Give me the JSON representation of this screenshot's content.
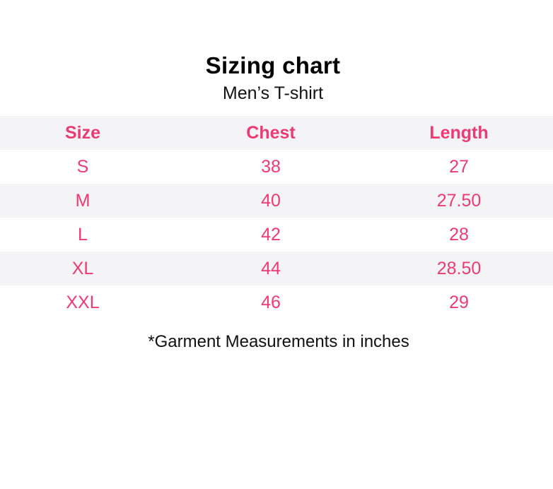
{
  "title": "Sizing chart",
  "subtitle": "Men’s T-shirt",
  "accent_color": "#ee3a72",
  "table": {
    "headers": [
      "Size",
      "Chest",
      "Length"
    ],
    "rows": [
      [
        "S",
        "38",
        "27"
      ],
      [
        "M",
        "40",
        "27.50"
      ],
      [
        "L",
        "42",
        "28"
      ],
      [
        "XL",
        "44",
        "28.50"
      ],
      [
        "XXL",
        "46",
        "29"
      ]
    ]
  },
  "note": "*Garment Measurements in inches"
}
